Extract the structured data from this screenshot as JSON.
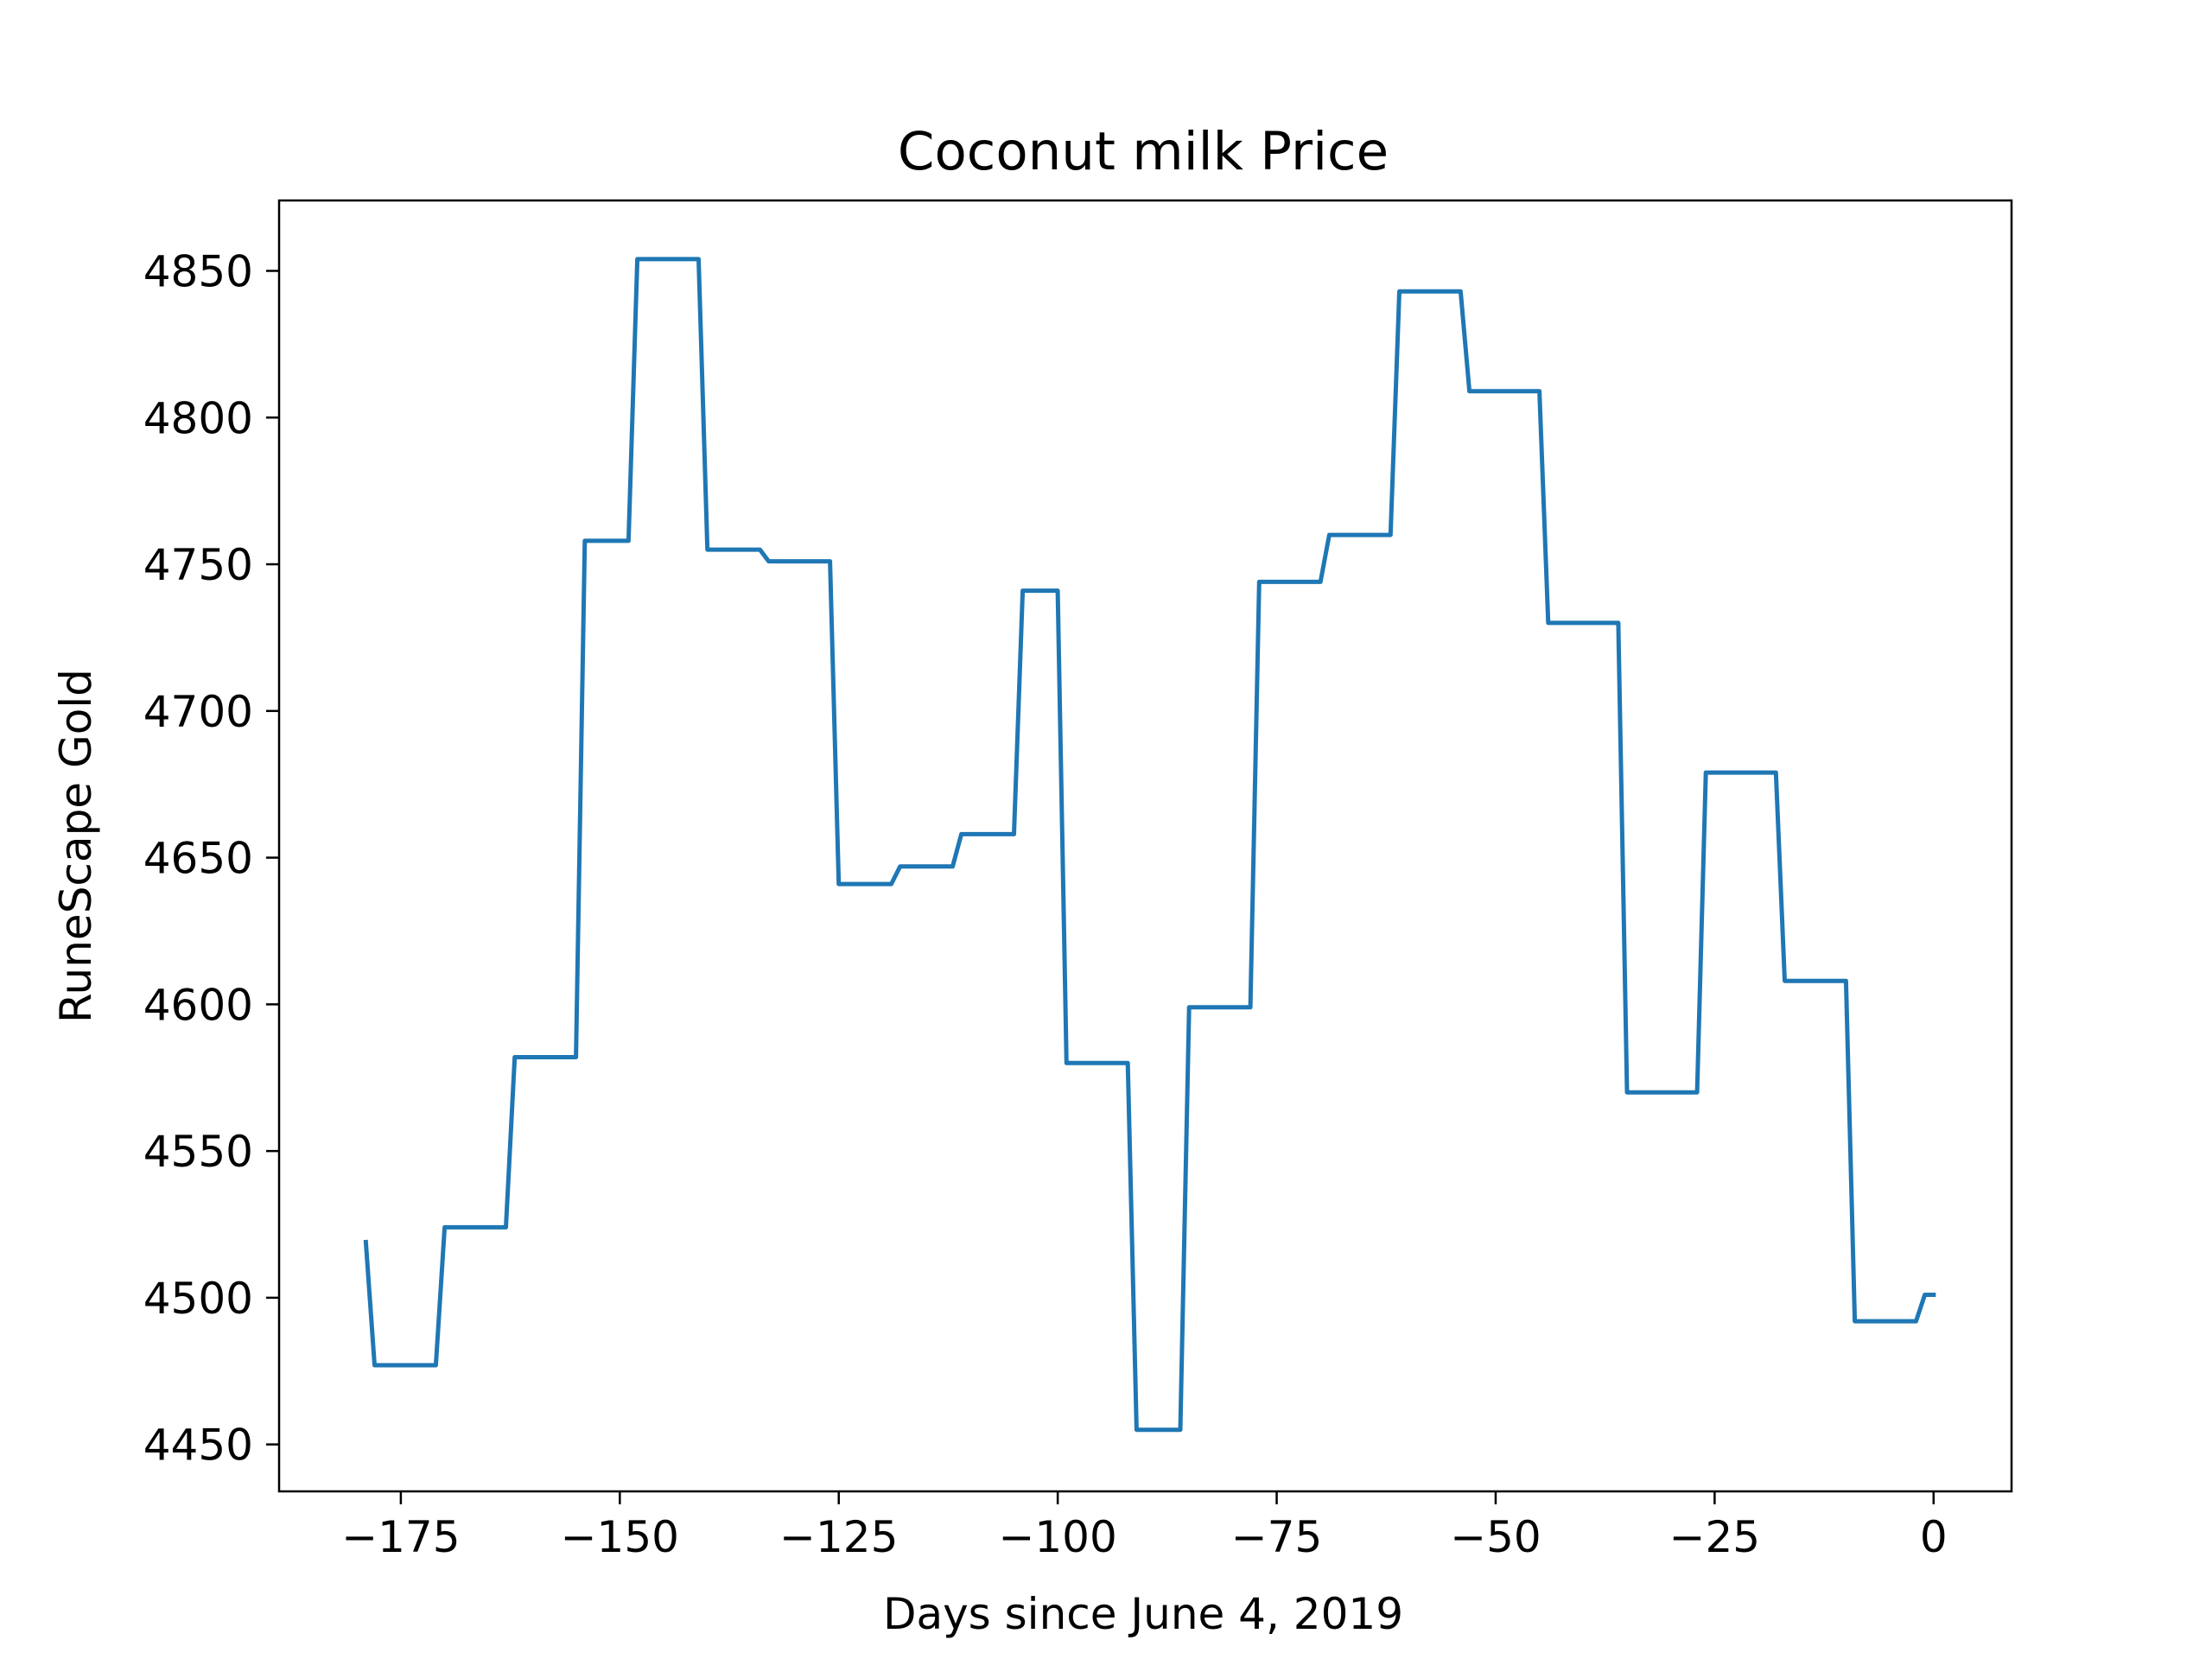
{
  "chart_data": {
    "type": "line",
    "title": "Coconut milk Price",
    "xlabel": "Days since June 4, 2019",
    "ylabel": "RuneScape Gold",
    "xlim": [
      -188.9,
      8.9
    ],
    "ylim": [
      4434,
      4874
    ],
    "xticks": [
      -175,
      -150,
      -125,
      -100,
      -75,
      -50,
      -25,
      0
    ],
    "xtick_labels": [
      "−175",
      "−150",
      "−125",
      "−100",
      "−75",
      "−50",
      "−25",
      "0"
    ],
    "yticks": [
      4450,
      4500,
      4550,
      4600,
      4650,
      4700,
      4750,
      4800,
      4850
    ],
    "ytick_labels": [
      "4450",
      "4500",
      "4550",
      "4600",
      "4650",
      "4700",
      "4750",
      "4800",
      "4850"
    ],
    "grid": false,
    "color": "#1f77b4",
    "series": [
      {
        "x": [
          -179,
          -178,
          -171,
          -170,
          -163,
          -162,
          -155,
          -154,
          -149,
          -148,
          -141,
          -140,
          -134,
          -133,
          -126,
          -125,
          -119,
          -118,
          -112,
          -111,
          -105,
          -104,
          -100,
          -99,
          -92,
          -91,
          -86,
          -85,
          -78,
          -77,
          -70,
          -69,
          -62,
          -61,
          -54,
          -53,
          -45,
          -44,
          -36,
          -35,
          -27,
          -26,
          -18,
          -17,
          -10,
          -9,
          -2,
          -1,
          0
        ],
        "y": [
          4519,
          4477,
          4477,
          4524,
          4524,
          4582,
          4582,
          4758,
          4758,
          4854,
          4854,
          4755,
          4755,
          4751,
          4751,
          4641,
          4641,
          4647,
          4647,
          4658,
          4658,
          4741,
          4741,
          4580,
          4580,
          4455,
          4455,
          4599,
          4599,
          4744,
          4744,
          4760,
          4760,
          4843,
          4843,
          4809,
          4809,
          4730,
          4730,
          4570,
          4570,
          4679,
          4679,
          4608,
          4608,
          4492,
          4492,
          4501,
          4501
        ]
      }
    ]
  }
}
